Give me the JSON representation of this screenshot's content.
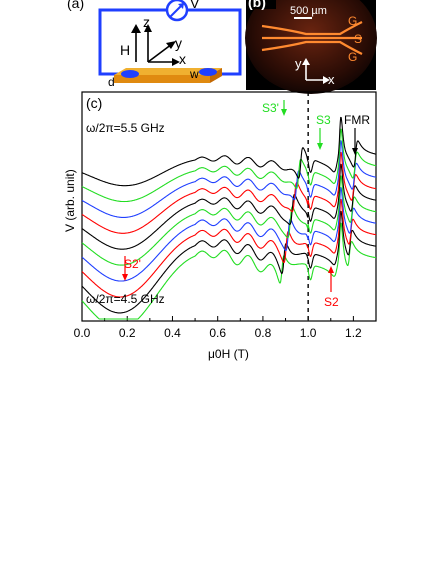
{
  "panel_a": {
    "label": "(a)",
    "voltmeter": "V",
    "axes": {
      "z": "z",
      "y": "y",
      "x": "x",
      "h": "H"
    },
    "dims": {
      "w": "w",
      "d": "d"
    }
  },
  "panel_b": {
    "label": "(b)",
    "scale_bar": "500 µm",
    "contacts": [
      "G",
      "S",
      "G"
    ],
    "axes": {
      "y": "y",
      "x": "x"
    }
  },
  "panel_c": {
    "label": "(c)"
  },
  "colors": {
    "black": "#000000",
    "red": "#ff0000",
    "blue": "#1f3fff",
    "green": "#22dd22"
  },
  "chart_data": {
    "type": "line",
    "xlabel": "μ0H (T)",
    "ylabel": "V (arb. unit)",
    "xlim": [
      0.0,
      1.3
    ],
    "x_ticks": [
      "0.0",
      "0.2",
      "0.4",
      "0.6",
      "0.8",
      "1.0",
      "1.2"
    ],
    "annotations": {
      "top_freq": "ω/2π=5.5 GHz",
      "bottom_freq": "ω/2π=4.5 GHz",
      "S3p": "S3'",
      "S3": "S3",
      "FMR": "FMR",
      "S2p": "S2'",
      "S2": "S2"
    },
    "dashed_line_x": 1.0,
    "series": [
      {
        "color": "green",
        "offset": 0,
        "dip": 0.175,
        "fs": 0.884,
        "fe": 0.905,
        "fa": 0.87,
        "fr": 1.183
      },
      {
        "color": "black",
        "offset": 0.6,
        "dip": 0.178,
        "fs": 0.893,
        "fe": 0.923,
        "fa": 0.81,
        "fr": 1.186
      },
      {
        "color": "red",
        "offset": 1.2,
        "dip": 0.181,
        "fs": 0.903,
        "fe": 0.942,
        "fa": 0.75,
        "fr": 1.189
      },
      {
        "color": "blue",
        "offset": 1.8,
        "dip": 0.184,
        "fs": 0.912,
        "fe": 0.96,
        "fa": 0.69,
        "fr": 1.192
      },
      {
        "color": "green",
        "offset": 2.4,
        "dip": 0.187,
        "fs": 0.921,
        "fe": 0.978,
        "fa": 0.63,
        "fr": 1.195
      },
      {
        "color": "black",
        "offset": 3.0,
        "dip": 0.19,
        "fs": 0.93,
        "fe": 0.996,
        "fa": 0.57,
        "fr": 1.198
      },
      {
        "color": "red",
        "offset": 3.6,
        "dip": 0.193,
        "fs": 0.94,
        "fe": 1.015,
        "fa": 0.51,
        "fr": 1.201
      },
      {
        "color": "blue",
        "offset": 4.2,
        "dip": 0.196,
        "fs": 0.949,
        "fe": 1.033,
        "fa": 0.45,
        "fr": 1.204
      },
      {
        "color": "green",
        "offset": 4.8,
        "dip": 0.199,
        "fs": 0.958,
        "fe": 1.051,
        "fa": 0.39,
        "fr": 1.207
      },
      {
        "color": "black",
        "offset": 5.4,
        "dip": 0.202,
        "fs": 0.967,
        "fe": 1.069,
        "fa": 0.33,
        "fr": 1.21
      }
    ]
  }
}
